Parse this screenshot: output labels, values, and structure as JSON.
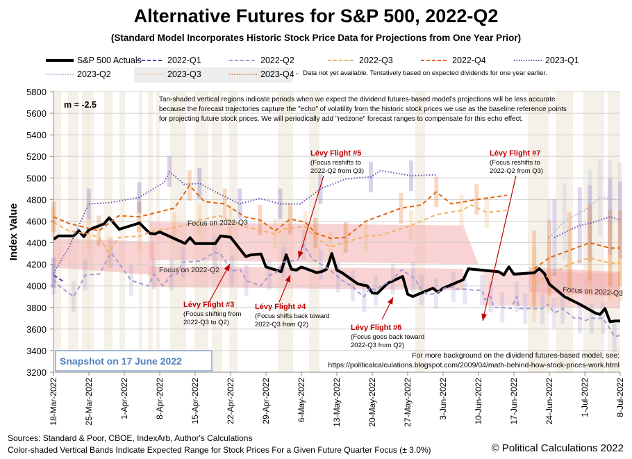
{
  "title": "Alternative Futures for S&P 500, 2022-Q2",
  "subtitle": "(Standard Model Incorporates Historic Stock Price Data for Projections from One Year Prior)",
  "legend_note": "← Data not yet available.  Tentatively based on expected dividends for one year earlier.",
  "slope_label": "m = -2.5",
  "info_text": [
    "Tan-shaded vertical regions indicate periods when we expect the dividend futures-based model's projections will be less accurate",
    "because the forecast trajectories capture the \"echo\" of volatility from the historic stock prices we use as the baseline reference points",
    "for projecting future stock prices.  We will periodically add \"redzone\" forecast ranges to compensate for this echo effect."
  ],
  "snapshot_label": "Snapshot on 17 June 2022",
  "background_note": [
    "For more background on the dividend futures-based model, see:",
    "https://politicalcalculations.blogspot.com/2009/04/math-behind-how-stock-prices-work.html"
  ],
  "footer": {
    "sources": "Sources: Standard & Poor, CBOE, IndexArb, Author's Calculations",
    "bands_note": "Color-shaded  Vertical Bands Indicate Expected Range for Stock Prices For a Given Future Quarter Focus (± 3.0%)",
    "copyright": "© Political Calculations 2022"
  },
  "colors": {
    "actuals": "#000000",
    "q1_2022": "#5b3a9e",
    "q2_2022": "#a59bd0",
    "q3_2022": "#f5b066",
    "q4_2022": "#e0650f",
    "q1_2023": "#6a4bab",
    "q2_2023": "#b3acd8",
    "q3_2023": "#f5c88e",
    "q4_2023": "#e58545",
    "redzone": "#f4a8a8",
    "tan_band": "#ece6d6",
    "annotation": "#c00000",
    "snapshot": "#4f81bd"
  },
  "chart_data": {
    "type": "line",
    "title": "Alternative Futures for S&P 500, 2022-Q2",
    "xlabel": "",
    "ylabel": "Index Value",
    "ylim": [
      3200,
      5800
    ],
    "yticks": [
      3200,
      3400,
      3600,
      3800,
      4000,
      4200,
      4400,
      4600,
      4800,
      5000,
      5200,
      5400,
      5600,
      5800
    ],
    "x_start": "2022-03-18",
    "x_end": "2022-07-08",
    "xticks": [
      "18-Mar-2022",
      "25-Mar-2022",
      "1-Apr-2022",
      "8-Apr-2022",
      "15-Apr-2022",
      "22-Apr-2022",
      "29-Apr-2022",
      "6-May-2022",
      "13-May-2022",
      "20-May-2022",
      "27-May-2022",
      "3-Jun-2022",
      "10-Jun-2022",
      "17-Jun-2022",
      "24-Jun-2022",
      "1-Jul-2022",
      "8-Jul-2022"
    ],
    "grid": true,
    "legend_position": "top",
    "series": [
      {
        "name": "S&P 500 Actuals",
        "key": "actuals",
        "style": "solid-thick",
        "points": [
          [
            0,
            4432
          ],
          [
            1,
            4463
          ],
          [
            4,
            4463
          ],
          [
            5,
            4511
          ],
          [
            6,
            4456
          ],
          [
            7,
            4520
          ],
          [
            10,
            4575
          ],
          [
            11,
            4631
          ],
          [
            13,
            4525
          ],
          [
            17,
            4583
          ],
          [
            19,
            4488
          ],
          [
            20,
            4481
          ],
          [
            21,
            4500
          ],
          [
            26,
            4393
          ],
          [
            27,
            4447
          ],
          [
            28,
            4392
          ],
          [
            32,
            4392
          ],
          [
            33,
            4463
          ],
          [
            35,
            4451
          ],
          [
            36,
            4392
          ],
          [
            38,
            4272
          ],
          [
            39,
            4287
          ],
          [
            41,
            4296
          ],
          [
            42,
            4175
          ],
          [
            45,
            4132
          ],
          [
            46,
            4288
          ],
          [
            47,
            4155
          ],
          [
            48,
            4146
          ],
          [
            49,
            4175
          ],
          [
            52,
            4123
          ],
          [
            53,
            4132
          ],
          [
            54,
            4155
          ],
          [
            55,
            4300
          ],
          [
            56,
            4146
          ],
          [
            57,
            4123
          ],
          [
            60,
            4023
          ],
          [
            61,
            4008
          ],
          [
            62,
            4001
          ],
          [
            63,
            3935
          ],
          [
            64,
            3930
          ],
          [
            66,
            4023
          ],
          [
            69,
            4088
          ],
          [
            70,
            3923
          ],
          [
            71,
            3901
          ],
          [
            73,
            3941
          ],
          [
            75,
            3978
          ],
          [
            76,
            3941
          ],
          [
            77,
            3978
          ],
          [
            81,
            4058
          ],
          [
            82,
            4158
          ],
          [
            88,
            4131
          ],
          [
            89,
            4101
          ],
          [
            90,
            4176
          ],
          [
            91,
            4108
          ],
          [
            95,
            4121
          ],
          [
            96,
            4160
          ],
          [
            97,
            4116
          ],
          [
            98,
            4017
          ],
          [
            101,
            3900
          ],
          [
            104,
            3830
          ],
          [
            107,
            3750
          ],
          [
            108,
            3735
          ],
          [
            109,
            3790
          ],
          [
            110,
            3667
          ],
          [
            111,
            3675
          ],
          [
            112,
            3675
          ]
        ]
      },
      {
        "name": "2022-Q1",
        "key": "q1_2022",
        "style": "dashed",
        "points": [
          [
            0,
            4100
          ],
          [
            2,
            4040
          ]
        ]
      },
      {
        "name": "2022-Q2",
        "key": "q2_2022",
        "style": "dashed",
        "points": [
          [
            0,
            4060
          ],
          [
            2,
            4000
          ],
          [
            7,
            3900
          ],
          [
            9,
            3990
          ],
          [
            11,
            4100
          ],
          [
            16,
            4110
          ],
          [
            20,
            4305
          ],
          [
            22,
            4240
          ],
          [
            27,
            4050
          ],
          [
            33,
            4000
          ],
          [
            35,
            4110
          ],
          [
            38,
            4000
          ],
          [
            41,
            4100
          ],
          [
            43,
            4110
          ],
          [
            45,
            4220
          ],
          [
            51,
            4230
          ],
          [
            56,
            4310
          ],
          [
            58,
            4300
          ],
          [
            62,
            4140
          ],
          [
            65,
            4150
          ],
          [
            67,
            4050
          ],
          [
            72,
            4000
          ],
          [
            75,
            4100
          ],
          [
            77,
            4110
          ],
          [
            80,
            4220
          ],
          [
            85,
            4240
          ],
          [
            87,
            4380
          ],
          [
            90,
            4250
          ],
          [
            93,
            4200
          ],
          [
            96,
            4150
          ],
          [
            99,
            4080
          ],
          [
            102,
            4020
          ],
          [
            104,
            4000
          ],
          [
            105,
            3960
          ],
          [
            108,
            3900
          ],
          [
            110,
            3980
          ],
          [
            112,
            3960
          ],
          [
            114,
            4000
          ],
          [
            118,
            4060
          ],
          [
            121,
            4150
          ],
          [
            125,
            4080
          ],
          [
            126,
            4050
          ],
          [
            128,
            3960
          ],
          [
            130,
            3920
          ],
          [
            133,
            3930
          ],
          [
            136,
            3980
          ],
          [
            139,
            3990
          ],
          [
            140,
            3970
          ],
          [
            143,
            3970
          ],
          [
            146,
            3960
          ],
          [
            149,
            3960
          ],
          [
            150,
            3870
          ],
          [
            152,
            3900
          ],
          [
            153,
            3800
          ],
          [
            156,
            3800
          ],
          [
            159,
            3790
          ],
          [
            161,
            3900
          ],
          [
            162,
            3790
          ],
          [
            164,
            3790
          ],
          [
            166,
            3790
          ],
          [
            170,
            3790
          ],
          [
            172,
            3830
          ],
          [
            174,
            3750
          ],
          [
            176,
            3770
          ],
          [
            177,
            3790
          ],
          [
            181,
            3700
          ],
          [
            183,
            3700
          ],
          [
            185,
            3680
          ],
          [
            187,
            3700
          ],
          [
            189,
            3700
          ],
          [
            191,
            3700
          ],
          [
            193,
            3620
          ],
          [
            195,
            3530
          ],
          [
            197,
            3540
          ]
        ]
      },
      {
        "name": "2022-Q3",
        "key": "q3_2022",
        "style": "dashed",
        "points": [
          [
            0,
            4590
          ],
          [
            3,
            4510
          ],
          [
            7,
            4480
          ],
          [
            9,
            4450
          ],
          [
            11,
            4310
          ],
          [
            13,
            4450
          ],
          [
            17,
            4460
          ],
          [
            20,
            4510
          ],
          [
            24,
            4540
          ],
          [
            28,
            4580
          ],
          [
            29,
            4610
          ],
          [
            33,
            4650
          ],
          [
            35,
            4600
          ],
          [
            38,
            4550
          ],
          [
            44,
            4480
          ],
          [
            46,
            4530
          ],
          [
            50,
            4550
          ],
          [
            52,
            4450
          ],
          [
            55,
            4360
          ],
          [
            57,
            4390
          ],
          [
            62,
            4460
          ],
          [
            65,
            4470
          ],
          [
            71,
            4560
          ],
          [
            76,
            4660
          ],
          [
            81,
            4700
          ],
          [
            83,
            4750
          ],
          [
            86,
            4680
          ],
          [
            90,
            4700
          ]
        ]
      },
      {
        "name": "2022-Q4",
        "key": "q4_2022",
        "style": "dashed",
        "points": [
          [
            0,
            4640
          ],
          [
            3,
            4580
          ],
          [
            9,
            4510
          ],
          [
            13,
            4650
          ],
          [
            17,
            4640
          ],
          [
            24,
            4720
          ],
          [
            27,
            4930
          ],
          [
            30,
            4780
          ],
          [
            34,
            4760
          ],
          [
            38,
            4640
          ],
          [
            41,
            4610
          ],
          [
            44,
            4510
          ],
          [
            47,
            4620
          ],
          [
            50,
            4590
          ],
          [
            52,
            4490
          ],
          [
            55,
            4440
          ],
          [
            58,
            4450
          ],
          [
            62,
            4600
          ],
          [
            69,
            4720
          ],
          [
            73,
            4750
          ],
          [
            76,
            4870
          ],
          [
            79,
            4760
          ],
          [
            84,
            4800
          ],
          [
            90,
            4840
          ]
        ]
      },
      {
        "name": "2023-Q1",
        "key": "q1_2023",
        "style": "dotted",
        "points": [
          [
            0,
            4120
          ],
          [
            3,
            4350
          ],
          [
            7,
            4760
          ],
          [
            11,
            4770
          ],
          [
            17,
            4820
          ],
          [
            22,
            4960
          ],
          [
            23,
            5060
          ],
          [
            26,
            4940
          ],
          [
            29,
            4950
          ],
          [
            33,
            4850
          ],
          [
            37,
            4760
          ],
          [
            41,
            4810
          ],
          [
            45,
            4760
          ],
          [
            49,
            4760
          ],
          [
            53,
            4900
          ],
          [
            58,
            4990
          ],
          [
            63,
            5010
          ],
          [
            65,
            5070
          ],
          [
            71,
            5020
          ],
          [
            76,
            5030
          ]
        ]
      },
      {
        "name": "2023-Q2",
        "key": "q2_2023",
        "style": "dotted",
        "points": []
      },
      {
        "name": "2023-Q3",
        "key": "q3_2023",
        "style": "dotted",
        "points": []
      },
      {
        "name": "2023-Q4",
        "key": "q4_2023",
        "style": "dotted",
        "points": []
      }
    ],
    "annotations": [
      {
        "label": "Focus on 2022-Q3",
        "type": "redzone-label"
      },
      {
        "label": "Focus on 2022-Q2",
        "type": "redzone-label"
      },
      {
        "label": "Focus on 2022-Q3",
        "type": "redzone-label"
      },
      {
        "title": "Lévy Flight #3",
        "lines": [
          "(Focus shifting from",
          "2022-Q3 to Q2)"
        ]
      },
      {
        "title": "Lévy Flight #4",
        "lines": [
          "(Focus shifts back toward",
          "2022-Q3 from Q2)"
        ]
      },
      {
        "title": "Lévy Flight #5",
        "lines": [
          "(Focus reshifts to",
          "2022-Q2 from Q3)"
        ]
      },
      {
        "title": "Lévy Flight #6",
        "lines": [
          "(Focus goes back toward",
          "2022-Q3 from Q2)"
        ]
      },
      {
        "title": "Lévy Flight #7",
        "lines": [
          "(Focus reshifts to",
          "2022-Q2 from Q3)"
        ]
      }
    ]
  },
  "legend": [
    {
      "label": "S&P 500 Actuals",
      "key": "actuals",
      "style": "solid-thick"
    },
    {
      "label": "2022-Q1",
      "key": "q1_2022",
      "style": "dashed"
    },
    {
      "label": "2022-Q2",
      "key": "q2_2022",
      "style": "dashed"
    },
    {
      "label": "2022-Q3",
      "key": "q3_2022",
      "style": "dashed"
    },
    {
      "label": "2022-Q4",
      "key": "q4_2022",
      "style": "dashed"
    },
    {
      "label": "2023-Q1",
      "key": "q1_2023",
      "style": "dotted"
    },
    {
      "label": "2023-Q2",
      "key": "q2_2023",
      "style": "dotted"
    },
    {
      "label": "2023-Q3",
      "key": "q3_2023",
      "style": "dotted"
    },
    {
      "label": "2023-Q4",
      "key": "q4_2023",
      "style": "dotted"
    }
  ]
}
